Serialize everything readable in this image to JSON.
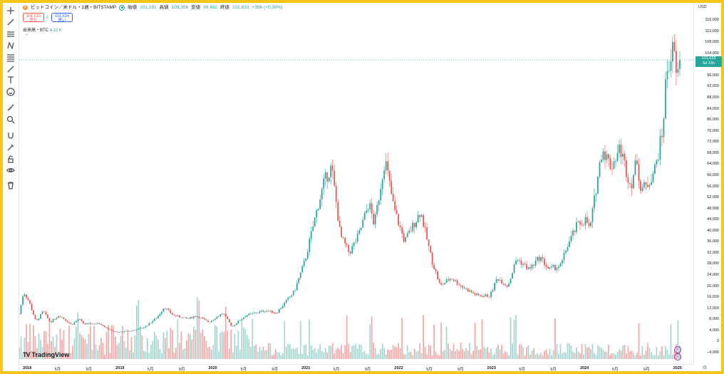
{
  "legend": {
    "symbol": "ビットコイン／米ドル・1週・BITSTAMP",
    "open_label": "始値",
    "open": "101,191",
    "high_label": "高値",
    "high": "109,356",
    "low_label": "安値",
    "low": "99,462",
    "close_label": "終値",
    "close": "101,633",
    "change": "+396 (+0.39%)"
  },
  "trade": {
    "sell_price": "101,633",
    "sell_label": "売り",
    "spread": "1",
    "buy_price": "101,634",
    "buy_label": "買い"
  },
  "volume": {
    "label": "出来高・BTC",
    "value": "4.12 K"
  },
  "collapse_glyph": "⌃",
  "currency": "USD",
  "price_tag": {
    "price": "101,633",
    "countdown": "5d 13h"
  },
  "logo": "TradingView",
  "colors": {
    "up": "#26a69a",
    "down": "#ef5350",
    "vol_up": "#a5d6d0",
    "vol_down": "#f5a9a7"
  },
  "toolbar": {
    "icons": [
      "crosshair-icon",
      "trend-line-icon",
      "channel-icon",
      "pattern-icon",
      "fib-icon",
      "brush-icon",
      "text-icon",
      "emoji-icon",
      "ruler-icon",
      "zoom-icon",
      "magnet-icon",
      "stay-drawing-icon",
      "lock-icon",
      "eye-icon",
      "trash-icon"
    ]
  },
  "chart_data": {
    "type": "candlestick",
    "title": "ビットコイン／米ドル・1週・BITSTAMP",
    "ylim": [
      -4000,
      116000
    ],
    "y_ticks": [
      "116,000",
      "112,000",
      "108,000",
      "104,000",
      "96,000",
      "92,000",
      "88,000",
      "84,000",
      "80,000",
      "76,000",
      "72,000",
      "68,000",
      "64,000",
      "60,000",
      "56,000",
      "52,000",
      "48,000",
      "44,000",
      "40,000",
      "36,000",
      "32,000",
      "28,000",
      "24,000",
      "20,000",
      "16,000",
      "12,000",
      "8,000",
      "4,000",
      "0",
      "−4,000"
    ],
    "x_ticks": [
      {
        "label": "2018",
        "bold": true
      },
      {
        "label": "5月"
      },
      {
        "label": "9月"
      },
      {
        "label": "2019",
        "bold": true
      },
      {
        "label": "5月"
      },
      {
        "label": "9月"
      },
      {
        "label": "2020",
        "bold": true
      },
      {
        "label": "5月"
      },
      {
        "label": "9月"
      },
      {
        "label": "2021",
        "bold": true
      },
      {
        "label": "5月"
      },
      {
        "label": "9月"
      },
      {
        "label": "2022",
        "bold": true
      },
      {
        "label": "5月"
      },
      {
        "label": "9月"
      },
      {
        "label": "2023",
        "bold": true
      },
      {
        "label": "5月"
      },
      {
        "label": "9月"
      },
      {
        "label": "2024",
        "bold": true
      },
      {
        "label": "5月"
      },
      {
        "label": "9月"
      },
      {
        "label": "2025",
        "bold": true
      }
    ],
    "x_dates": [
      "2017-12-01",
      "2025-01-13"
    ],
    "price_path": [
      [
        "2017-12-01",
        10000
      ],
      [
        "2017-12-18",
        18000
      ],
      [
        "2018-01-08",
        14500
      ],
      [
        "2018-02-05",
        7000
      ],
      [
        "2018-03-05",
        11000
      ],
      [
        "2018-04-02",
        7000
      ],
      [
        "2018-05-07",
        9500
      ],
      [
        "2018-06-25",
        6000
      ],
      [
        "2018-07-23",
        8200
      ],
      [
        "2018-08-13",
        6300
      ],
      [
        "2018-10-15",
        6500
      ],
      [
        "2018-11-19",
        4300
      ],
      [
        "2018-12-17",
        3300
      ],
      [
        "2019-02-18",
        3900
      ],
      [
        "2019-04-08",
        5200
      ],
      [
        "2019-05-27",
        8700
      ],
      [
        "2019-06-24",
        12500
      ],
      [
        "2019-07-29",
        9500
      ],
      [
        "2019-09-23",
        8200
      ],
      [
        "2019-10-28",
        9300
      ],
      [
        "2019-12-16",
        7000
      ],
      [
        "2020-02-10",
        10300
      ],
      [
        "2020-03-16",
        5400
      ],
      [
        "2020-05-11",
        9500
      ],
      [
        "2020-07-27",
        11200
      ],
      [
        "2020-09-07",
        10300
      ],
      [
        "2020-11-16",
        18000
      ],
      [
        "2020-12-28",
        29000
      ],
      [
        "2021-02-15",
        48000
      ],
      [
        "2021-03-15",
        58000
      ],
      [
        "2021-04-12",
        63000
      ],
      [
        "2021-05-17",
        38000
      ],
      [
        "2021-06-21",
        32000
      ],
      [
        "2021-07-26",
        38000
      ],
      [
        "2021-09-06",
        50000
      ],
      [
        "2021-09-27",
        42000
      ],
      [
        "2021-11-08",
        66000
      ],
      [
        "2021-12-13",
        48000
      ],
      [
        "2022-01-24",
        36000
      ],
      [
        "2022-03-28",
        47000
      ],
      [
        "2022-05-09",
        30000
      ],
      [
        "2022-06-13",
        20000
      ],
      [
        "2022-07-25",
        23000
      ],
      [
        "2022-09-12",
        19500
      ],
      [
        "2022-11-07",
        16500
      ],
      [
        "2022-12-26",
        16500
      ],
      [
        "2023-01-23",
        23000
      ],
      [
        "2023-03-06",
        20000
      ],
      [
        "2023-04-10",
        30000
      ],
      [
        "2023-05-29",
        26000
      ],
      [
        "2023-07-10",
        30500
      ],
      [
        "2023-08-14",
        26000
      ],
      [
        "2023-10-02",
        27500
      ],
      [
        "2023-10-23",
        34000
      ],
      [
        "2023-12-04",
        42000
      ],
      [
        "2024-01-08",
        44000
      ],
      [
        "2024-01-22",
        40000
      ],
      [
        "2024-03-11",
        70000
      ],
      [
        "2024-04-15",
        63000
      ],
      [
        "2024-05-20",
        70000
      ],
      [
        "2024-07-01",
        56000
      ],
      [
        "2024-07-29",
        67000
      ],
      [
        "2024-08-05",
        55000
      ],
      [
        "2024-09-02",
        56000
      ],
      [
        "2024-10-07",
        63000
      ],
      [
        "2024-11-04",
        76000
      ],
      [
        "2024-11-18",
        97000
      ],
      [
        "2024-12-16",
        106000
      ],
      [
        "2024-12-30",
        94000
      ],
      [
        "2025-01-13",
        101633
      ]
    ],
    "last_close": 101633
  }
}
